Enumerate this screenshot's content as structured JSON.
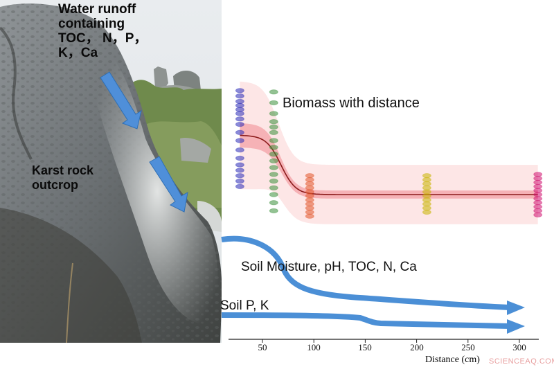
{
  "photo": {
    "runoff_label_lines": [
      "Water runoff",
      "containing",
      "TOC，  N，P，",
      "K，Ca"
    ],
    "outcrop_label_lines": [
      "Karst rock",
      "outcrop"
    ]
  },
  "plot": {
    "biomass_label": "Biomass with distance",
    "moisture_label": "Soil Moisture, pH, TOC, N, Ca",
    "pk_label": "Soil P, K",
    "x_axis_title": "Distance (cm)",
    "x_ticks": [
      "50",
      "100",
      "150",
      "200",
      "250",
      "300"
    ]
  },
  "watermark": "SCIENCEAQ.COM",
  "chart_data": {
    "type": "scatter",
    "xlabel": "Distance (cm)",
    "ylabel": "",
    "xlim": [
      15,
      325
    ],
    "x_ticks": [
      50,
      100,
      150,
      200,
      250,
      300
    ],
    "series": [
      {
        "name": "Biomass with distance",
        "groups": [
          {
            "x": 28,
            "color": "#2b2bb8",
            "values": [
              0.97,
              0.93,
              0.89,
              0.86,
              0.83,
              0.8,
              0.76,
              0.72,
              0.66,
              0.6,
              0.53,
              0.47,
              0.42,
              0.38,
              0.34,
              0.3,
              0.26
            ]
          },
          {
            "x": 61,
            "color": "#3a8f3a",
            "values": [
              0.96,
              0.88,
              0.8,
              0.74,
              0.7,
              0.66,
              0.6,
              0.55,
              0.5,
              0.45,
              0.4,
              0.35,
              0.3,
              0.25,
              0.2,
              0.14,
              0.08
            ]
          },
          {
            "x": 96,
            "color": "#e2562a",
            "values": [
              0.34,
              0.31,
              0.28,
              0.25,
              0.22,
              0.19,
              0.16,
              0.13,
              0.1,
              0.07,
              0.04
            ]
          },
          {
            "x": 210,
            "color": "#c9b400",
            "values": [
              0.34,
              0.31,
              0.28,
              0.25,
              0.22,
              0.19,
              0.16,
              0.13,
              0.1,
              0.07
            ]
          },
          {
            "x": 318,
            "color": "#d01070",
            "values": [
              0.35,
              0.32,
              0.29,
              0.26,
              0.23,
              0.2,
              0.17,
              0.14,
              0.11,
              0.08,
              0.05
            ]
          }
        ]
      }
    ],
    "fit_curve": {
      "plateau_start": 0.64,
      "plateau_end": 0.2,
      "midpoint": 68,
      "steepness": 0.14
    }
  }
}
